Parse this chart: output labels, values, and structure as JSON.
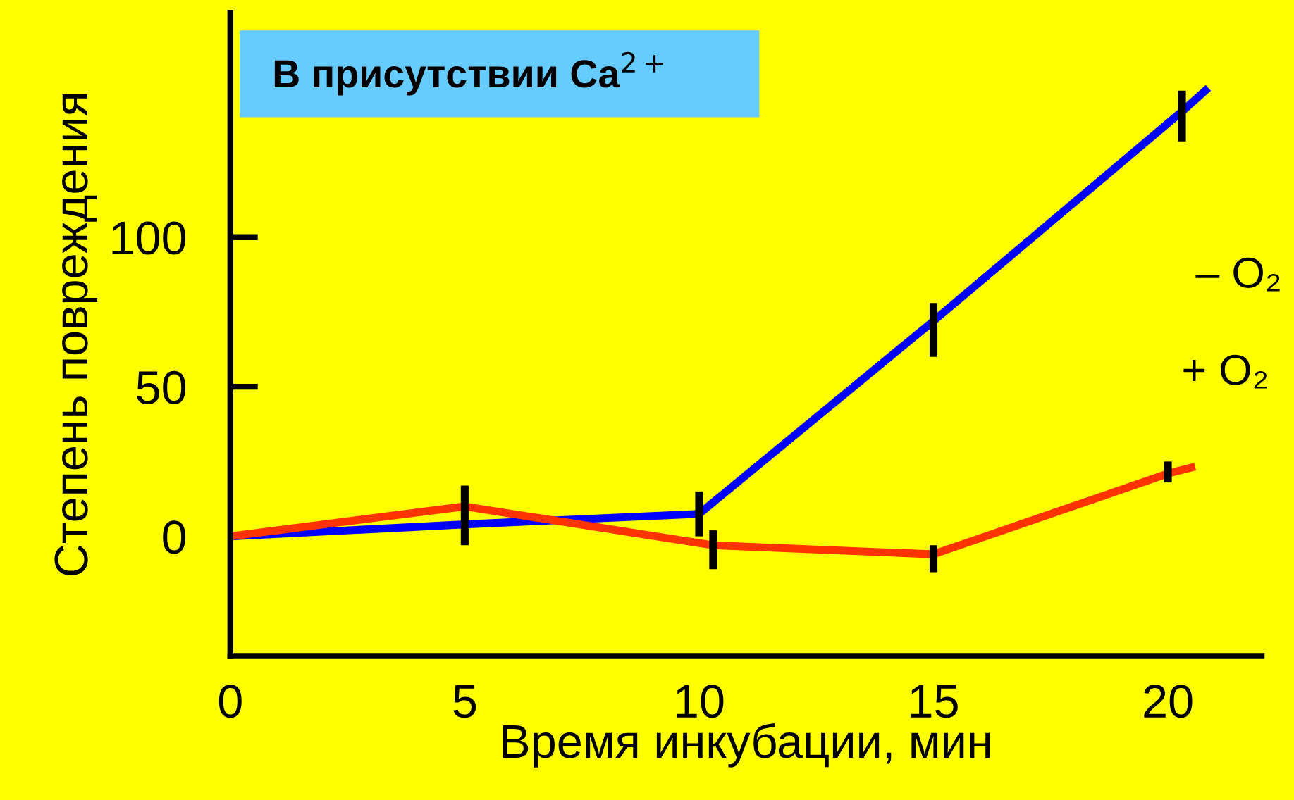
{
  "chart_data": {
    "type": "line",
    "xlabel": "Время инкубации, мин",
    "ylabel": "Степень повреждения",
    "annotations": [
      "В присутствии Ca$^{2+}$"
    ],
    "series": [
      {
        "name": "– O₂",
        "color": "#0000ff",
        "x": [
          0,
          5,
          10,
          15,
          20.3,
          20.8
        ],
        "values": [
          0,
          4,
          7.5,
          72,
          142,
          149
        ],
        "errors": [
          null,
          [
            -3,
            17
          ],
          [
            0,
            15
          ],
          [
            60,
            78
          ],
          [
            132,
            149
          ],
          null
        ]
      },
      {
        "name": "+ O₂",
        "color": "#ff3300",
        "x": [
          0,
          5,
          10.3,
          15,
          20,
          20.5
        ],
        "values": [
          0,
          10,
          -3,
          -6,
          21,
          23
        ],
        "errors": [
          null,
          null,
          [
            -11,
            2
          ],
          [
            -12,
            -3
          ],
          [
            18,
            25
          ],
          null
        ]
      }
    ],
    "xlim": [
      0,
      22
    ],
    "xticks": [
      0,
      5,
      10,
      15,
      20
    ],
    "ylim": [
      -40,
      175
    ],
    "yticks": [
      0,
      50,
      100
    ],
    "grid": false,
    "legend": false,
    "marker": "none",
    "line_style": "solid"
  }
}
